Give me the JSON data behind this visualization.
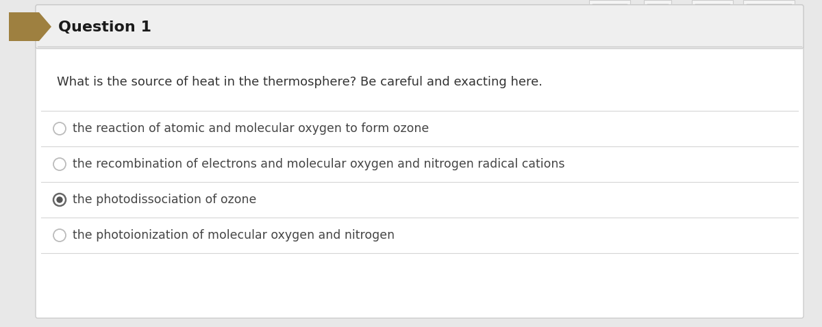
{
  "title": "Question 1",
  "question": "What is the source of heat in the thermosphere? Be careful and exacting here.",
  "options": [
    "the reaction of atomic and molecular oxygen to form ozone",
    "the recombination of electrons and molecular oxygen and nitrogen radical cations",
    "the photodissociation of ozone",
    "the photoionization of molecular oxygen and nitrogen"
  ],
  "correct_index": 2,
  "bg_color": "#e8e8e8",
  "card_color": "#ffffff",
  "header_bg": "#efefef",
  "arrow_color": "#9e8040",
  "title_color": "#1a1a1a",
  "question_color": "#333333",
  "option_color": "#444444",
  "divider_color": "#d5d5d5",
  "radio_empty_color": "#bbbbbb",
  "radio_filled_color": "#555555",
  "header_line_color": "#cccccc",
  "card_border_color": "#cccccc",
  "tab_color": "#e0e0e0"
}
